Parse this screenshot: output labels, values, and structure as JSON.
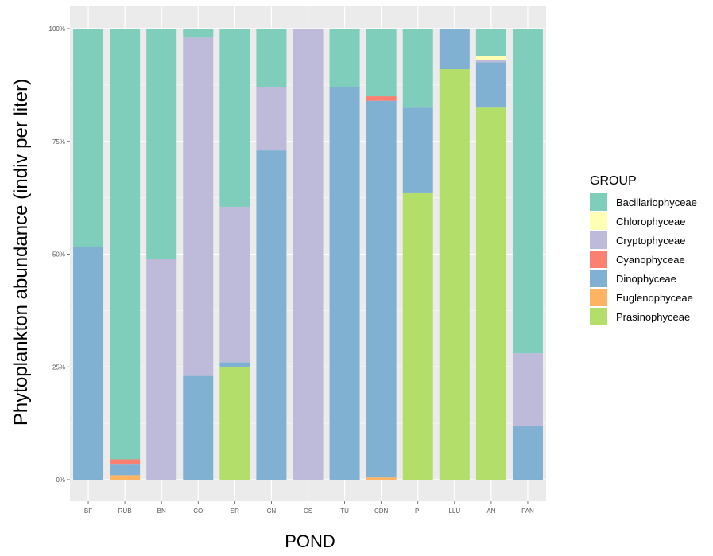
{
  "chart_data": {
    "type": "bar",
    "stacked": true,
    "percent": true,
    "title": "",
    "xlabel": "POND",
    "ylabel": "Phytoplankton abundance (indiv per liter)",
    "ylim": [
      0,
      1
    ],
    "yticks": [
      "0%",
      "25%",
      "50%",
      "75%",
      "100%"
    ],
    "grid": true,
    "legend_position": "right",
    "legend_title": "GROUP",
    "categories": [
      "BF",
      "RUB",
      "BN",
      "CO",
      "ER",
      "CN",
      "CS",
      "TU",
      "CDN",
      "PI",
      "LLU",
      "AN",
      "FAN"
    ],
    "series": [
      {
        "name": "Bacillariophyceae",
        "color": "#7fcdbb",
        "values": [
          0.485,
          0.955,
          0.51,
          0.02,
          0.395,
          0.13,
          0.0,
          0.13,
          0.15,
          0.175,
          0.0,
          0.06,
          0.72
        ]
      },
      {
        "name": "Chlorophyceae",
        "color": "#ffffb3",
        "values": [
          0,
          0,
          0,
          0,
          0,
          0,
          0,
          0,
          0,
          0,
          0,
          0.01,
          0
        ]
      },
      {
        "name": "Cryptophyceae",
        "color": "#bebada",
        "values": [
          0,
          0,
          0.49,
          0.75,
          0.345,
          0.14,
          1.0,
          0,
          0,
          0,
          0,
          0.005,
          0.16
        ]
      },
      {
        "name": "Cyanophyceae",
        "color": "#fb8072",
        "values": [
          0,
          0.01,
          0,
          0,
          0,
          0,
          0,
          0,
          0.01,
          0,
          0,
          0,
          0
        ]
      },
      {
        "name": "Dinophyceae",
        "color": "#80b1d3",
        "values": [
          0.515,
          0.025,
          0,
          0.23,
          0.01,
          0.73,
          0,
          0.87,
          0.835,
          0.19,
          0.09,
          0.1,
          0.12
        ]
      },
      {
        "name": "Euglenophyceae",
        "color": "#fdb462",
        "values": [
          0,
          0.01,
          0,
          0,
          0,
          0,
          0,
          0,
          0.005,
          0,
          0,
          0,
          0
        ]
      },
      {
        "name": "Prasinophyceae",
        "color": "#b3de69",
        "values": [
          0,
          0,
          0,
          0,
          0.25,
          0,
          0,
          0,
          0,
          0.635,
          0.91,
          0.825,
          0
        ]
      }
    ]
  }
}
